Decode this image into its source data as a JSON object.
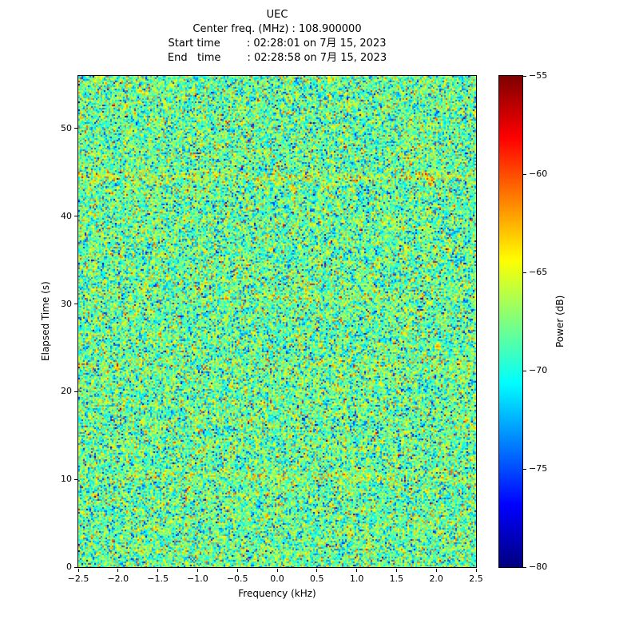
{
  "header": {
    "title": "UEC",
    "center_freq_line": "Center freq. (MHz) : 108.900000",
    "start_time_line": "Start time        : 02:28:01 on 7月 15, 2023",
    "end_time_line": "End   time        : 02:28:58 on 7月 15, 2023"
  },
  "colors": {
    "background": "#ffffff",
    "axis": "#000000",
    "colormap": "jet"
  },
  "chart_data": {
    "type": "heatmap",
    "title": "UEC",
    "subtitle_lines": [
      "Center freq. (MHz) : 108.900000",
      "Start time        : 02:28:01 on 7月 15, 2023",
      "End   time        : 02:28:58 on 7月 15, 2023"
    ],
    "xlabel": "Frequency (kHz)",
    "ylabel": "Elapsed Time (s)",
    "xlim": [
      -2.5,
      2.5
    ],
    "ylim": [
      0,
      56
    ],
    "grid": false,
    "xticks": {
      "values": [
        -2.5,
        -2.0,
        -1.5,
        -1.0,
        -0.5,
        0.0,
        0.5,
        1.0,
        1.5,
        2.0,
        2.5
      ],
      "labels": [
        "−2.5",
        "−2.0",
        "−1.5",
        "−1.0",
        "−0.5",
        "0.0",
        "0.5",
        "1.0",
        "1.5",
        "2.0",
        "2.5"
      ]
    },
    "yticks": {
      "values": [
        0,
        10,
        20,
        30,
        40,
        50
      ],
      "labels": [
        "0",
        "10",
        "20",
        "30",
        "40",
        "50"
      ]
    },
    "colorbar": {
      "label": "Power (dB)",
      "position": "right",
      "vmin": -80,
      "vmax": -55,
      "ticks": [
        -55,
        -60,
        -65,
        -70,
        -75,
        -80
      ],
      "tick_labels": [
        "−55",
        "−60",
        "−65",
        "−70",
        "−75",
        "−80"
      ],
      "colormap": "jet"
    },
    "data_model": {
      "description": "Broadband random-noise spectrogram with no coherent narrowband signal; power roughly uniform across all frequency/time bins around −68 dB with ±3.5 dB speckle (green/cyan field with scattered yellow-orange-red and blue dots), plus a few faint warmer horizontal bands.",
      "noise_mean_db": -68.2,
      "noise_std_db": 3.4,
      "bands": [
        {
          "time_s": 44.5,
          "boost_db": 1.6,
          "width_s": 0.5
        },
        {
          "time_s": 10.4,
          "boost_db": 1.3,
          "width_s": 0.5
        },
        {
          "time_s": 23.0,
          "boost_db": 0.9,
          "width_s": 0.6
        },
        {
          "time_s": 31.0,
          "boost_db": 0.8,
          "width_s": 0.5
        }
      ],
      "seed": 42
    }
  }
}
